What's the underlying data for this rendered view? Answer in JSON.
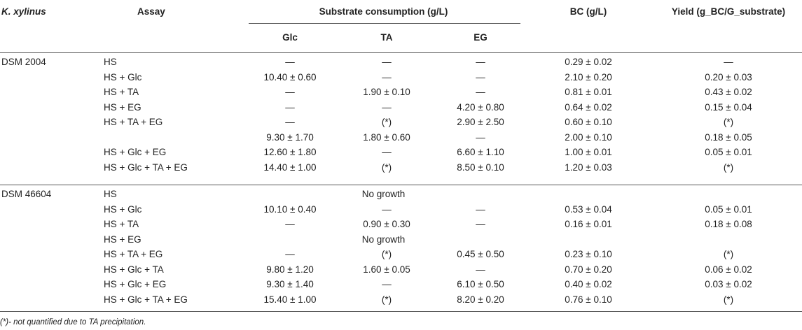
{
  "header": {
    "strain_col": "K. xylinus",
    "assay_col": "Assay",
    "substrate_group": "Substrate consumption (g/L)",
    "glc": "Glc",
    "ta": "TA",
    "eg": "EG",
    "bc": "BC (g/L)",
    "yield": "Yield (g_BC/G_substrate)"
  },
  "groups": [
    {
      "strain": "DSM 2004",
      "rows": [
        {
          "assay": "HS",
          "glc": "—",
          "ta": "—",
          "eg": "—",
          "bc": "0.29 ± 0.02",
          "yield": "—"
        },
        {
          "assay": "HS + Glc",
          "glc": "10.40 ± 0.60",
          "ta": "—",
          "eg": "—",
          "bc": "2.10 ± 0.20",
          "yield": "0.20 ± 0.03"
        },
        {
          "assay": "HS + TA",
          "glc": "—",
          "ta": "1.90 ± 0.10",
          "eg": "—",
          "bc": "0.81 ± 0.01",
          "yield": "0.43 ± 0.02"
        },
        {
          "assay": "HS + EG",
          "glc": "—",
          "ta": "—",
          "eg": "4.20 ± 0.80",
          "bc": "0.64 ± 0.02",
          "yield": "0.15 ± 0.04"
        },
        {
          "assay": "HS + TA + EG",
          "glc": "—",
          "ta": "(*)",
          "eg": "2.90 ± 2.50",
          "bc": "0.60 ± 0.10",
          "yield": "(*)"
        },
        {
          "assay": "",
          "glc": "9.30 ± 1.70",
          "ta": "1.80 ± 0.60",
          "eg": "—",
          "bc": "2.00 ± 0.10",
          "yield": "0.18 ± 0.05"
        },
        {
          "assay": "HS + Glc + EG",
          "glc": "12.60 ± 1.80",
          "ta": "—",
          "eg": "6.60 ± 1.10",
          "bc": "1.00 ± 0.01",
          "yield": "0.05 ± 0.01"
        },
        {
          "assay": "HS + Glc + TA + EG",
          "glc": "14.40 ± 1.00",
          "ta": "(*)",
          "eg": "8.50 ± 0.10",
          "bc": "1.20 ± 0.03",
          "yield": "(*)"
        }
      ]
    },
    {
      "strain": "DSM 46604",
      "rows": [
        {
          "assay": "HS",
          "span": "No growth"
        },
        {
          "assay": "HS + Glc",
          "glc": "10.10 ± 0.40",
          "ta": "—",
          "eg": "—",
          "bc": "0.53 ± 0.04",
          "yield": "0.05 ± 0.01"
        },
        {
          "assay": "HS + TA",
          "glc": "—",
          "ta": "0.90 ± 0.30",
          "eg": "—",
          "bc": "0.16 ± 0.01",
          "yield": "0.18 ± 0.08"
        },
        {
          "assay": "HS + EG",
          "span": "No growth"
        },
        {
          "assay": "HS + TA + EG",
          "glc": "—",
          "ta": "(*)",
          "eg": "0.45 ± 0.50",
          "bc": "0.23 ± 0.10",
          "yield": "(*)"
        },
        {
          "assay": "HS + Glc + TA",
          "glc": "9.80 ± 1.20",
          "ta": "1.60 ± 0.05",
          "eg": "—",
          "bc": "0.70 ± 0.20",
          "yield": "0.06 ± 0.02"
        },
        {
          "assay": "HS + Glc + EG",
          "glc": "9.30 ± 1.40",
          "ta": "—",
          "eg": "6.10 ± 0.50",
          "bc": "0.40 ± 0.02",
          "yield": "0.03 ± 0.02"
        },
        {
          "assay": "HS + Glc + TA + EG",
          "glc": "15.40 ± 1.00",
          "ta": "(*)",
          "eg": "8.20 ± 0.20",
          "bc": "0.76 ± 0.10",
          "yield": "(*)"
        }
      ]
    }
  ],
  "footnote": "(*)- not quantified due to TA precipitation."
}
